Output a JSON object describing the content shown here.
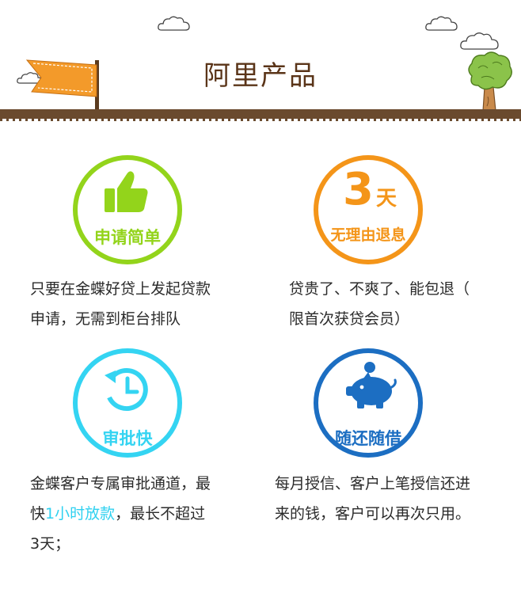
{
  "header": {
    "title": "阿里产品"
  },
  "colors": {
    "green": "#93d41b",
    "orange": "#f49519",
    "cyan": "#34d4f2",
    "blue": "#1c6ec2",
    "brown": "#6a4a2e"
  },
  "features": [
    {
      "icon": "thumbs-up-icon",
      "label": "申请简单",
      "desc_line1": "只要在金蝶好贷上发起贷款",
      "desc_line2": "申请，无需到柜台排队"
    },
    {
      "icon": "three-days-icon",
      "big_number": "3",
      "big_unit": "天",
      "label": "无理由退息",
      "desc_line1": "贷贵了、不爽了、能包退（",
      "desc_line2": "限首次获贷会员）"
    },
    {
      "icon": "clock-icon",
      "label": "审批快",
      "desc_line1": "金蝶客户专属审批通道，最",
      "desc_line2_pre": "快",
      "desc_line2_highlight": "1小时放款",
      "desc_line2_post": "，最长不超过",
      "desc_line3": "3天；"
    },
    {
      "icon": "piggy-bank-icon",
      "label": "随还随借",
      "desc_line1": "每月授信、客户上笔授信还进",
      "desc_line2": "来的钱，客户可以再次只用。"
    }
  ]
}
